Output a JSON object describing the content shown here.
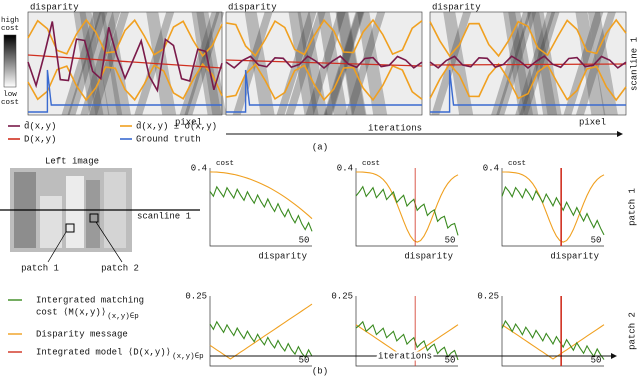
{
  "top": {
    "colorbar": {
      "high": [
        "high",
        "cost"
      ],
      "low": [
        "low",
        "cost"
      ]
    },
    "panels": [
      {
        "y_label": "disparity",
        "x_label": "pixel"
      },
      {
        "y_label": "disparity"
      },
      {
        "y_label": "disparity",
        "x_label": "pixel"
      }
    ],
    "row_label": "scanline 1",
    "legend": [
      "d̄(x,y)",
      "D(x,y)",
      "d̄(x,y) ± σ(x,y)",
      "Ground truth"
    ],
    "arrow_label": "iterations",
    "caption": "(a)"
  },
  "bottom": {
    "image_title": "Left image",
    "scanline": "scanline 1",
    "patches": [
      "patch 1",
      "patch 2"
    ],
    "rows": [
      {
        "label": "patch 1",
        "y_tick": "0.4",
        "x_tick": "50",
        "y_label": "cost",
        "x_label": "disparity"
      },
      {
        "label": "patch 2",
        "y_tick": "0.25",
        "x_tick": "50"
      }
    ],
    "legend": [
      {
        "lines": [
          "Intergrated matching",
          "cost ⟨M(x,y)⟩"
        ],
        "sub": "(x,y)∈p"
      },
      {
        "lines": [
          "Disparity message"
        ]
      },
      {
        "lines": [
          "Integrated model ⟨D(x,y)⟩"
        ],
        "sub": "(x,y)∈p"
      }
    ],
    "arrow_label": "iterations",
    "caption": "(b)"
  }
}
